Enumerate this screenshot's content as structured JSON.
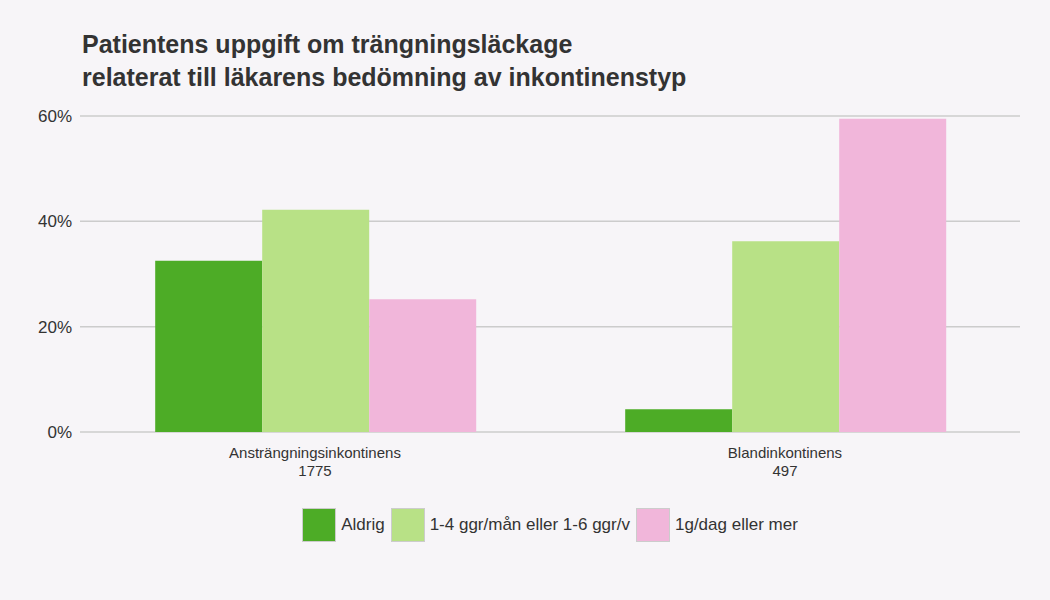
{
  "chart_data": {
    "type": "bar",
    "title": "Patientens uppgift om trängningsläckage\nrelaterat till läkarens bedömning av inkontinenstyp",
    "categories": [
      "Ansträngningsinkontinens",
      "Blandinkontinens"
    ],
    "n": [
      1775,
      497
    ],
    "series": [
      {
        "name": "Aldrig",
        "color": "#4dac26",
        "values": [
          32.5,
          4.3
        ]
      },
      {
        "name": "1-4 ggr/mån eller 1-6 ggr/v",
        "color": "#b8e186",
        "values": [
          42.2,
          36.2
        ]
      },
      {
        "name": "1g/dag eller mer",
        "color": "#f1b6da",
        "values": [
          25.2,
          59.5
        ]
      }
    ],
    "ylim": [
      0,
      60
    ],
    "yticks": [
      {
        "value": 0,
        "label": "0%"
      },
      {
        "value": 20,
        "label": "20%"
      },
      {
        "value": 40,
        "label": "40%"
      },
      {
        "value": 60,
        "label": "60%"
      }
    ],
    "grid": true,
    "legend": "bottom"
  }
}
